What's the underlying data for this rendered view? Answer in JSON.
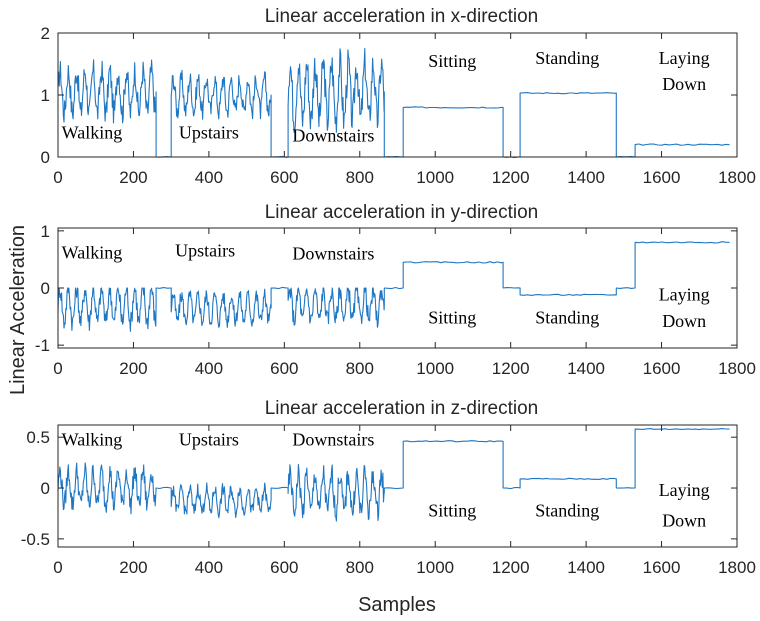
{
  "figure": {
    "ylabel": "Linear Acceleration",
    "xlabel": "Samples"
  },
  "colors": {
    "signal": "#1f77c4",
    "axis": "#262626"
  },
  "chart_data": [
    {
      "type": "line",
      "title": "Linear acceleration in x-direction",
      "xlim": [
        0,
        1800
      ],
      "ylim": [
        0,
        2
      ],
      "xticks": [
        0,
        200,
        400,
        600,
        800,
        1000,
        1200,
        1400,
        1600,
        1800
      ],
      "yticks": [
        0,
        1,
        2
      ],
      "segments": [
        {
          "label": "Walking",
          "x": [
            0,
            260
          ],
          "kind": "oscillating",
          "mean": 1.05,
          "amp": 0.45,
          "max": 1.65,
          "min": 0.55
        },
        {
          "label": "",
          "x": [
            260,
            300
          ],
          "kind": "flat",
          "value": 0.0
        },
        {
          "label": "Upstairs",
          "x": [
            300,
            565
          ],
          "kind": "oscillating",
          "mean": 1.0,
          "amp": 0.35,
          "max": 1.5,
          "min": 0.6
        },
        {
          "label": "",
          "x": [
            565,
            610
          ],
          "kind": "flat",
          "value": 0.0
        },
        {
          "label": "Downstairs",
          "x": [
            610,
            865
          ],
          "kind": "oscillating",
          "mean": 1.05,
          "amp": 0.6,
          "max": 1.9,
          "min": 0.4
        },
        {
          "label": "",
          "x": [
            865,
            915
          ],
          "kind": "flat",
          "value": 0.0
        },
        {
          "label": "Sitting",
          "x": [
            915,
            1180
          ],
          "kind": "flat",
          "value": 0.8
        },
        {
          "label": "",
          "x": [
            1180,
            1225
          ],
          "kind": "flat",
          "value": 0.0
        },
        {
          "label": "Standing",
          "x": [
            1225,
            1480
          ],
          "kind": "flat",
          "value": 1.03
        },
        {
          "label": "",
          "x": [
            1480,
            1530
          ],
          "kind": "flat",
          "value": 0.0
        },
        {
          "label": "Laying Down",
          "x": [
            1530,
            1780
          ],
          "kind": "flat",
          "value": 0.2
        }
      ],
      "annotations": [
        {
          "text": "Walking",
          "x": 90,
          "y": 0.3
        },
        {
          "text": "Upstairs",
          "x": 400,
          "y": 0.3
        },
        {
          "text": "Downstairs",
          "x": 730,
          "y": 0.25
        },
        {
          "text": "Sitting",
          "x": 1045,
          "y": 1.45
        },
        {
          "text": "Standing",
          "x": 1350,
          "y": 1.5
        },
        {
          "text": "Laying",
          "x": 1660,
          "y": 1.5
        },
        {
          "text": "Down",
          "x": 1660,
          "y": 1.08
        }
      ]
    },
    {
      "type": "line",
      "title": "Linear acceleration in y-direction",
      "xlim": [
        0,
        1800
      ],
      "ylim": [
        -1.05,
        1.05
      ],
      "xticks": [
        0,
        200,
        400,
        600,
        800,
        1000,
        1200,
        1400,
        1600,
        1800
      ],
      "yticks": [
        -1,
        0,
        1
      ],
      "ytick_labels": [
        "-1",
        "0",
        "1"
      ],
      "segments": [
        {
          "label": "Walking",
          "x": [
            0,
            260
          ],
          "kind": "oscillating",
          "mean": -0.3,
          "amp": 0.4,
          "max": 0.0,
          "min": -1.0
        },
        {
          "label": "",
          "x": [
            260,
            300
          ],
          "kind": "flat",
          "value": 0.0
        },
        {
          "label": "Upstairs",
          "x": [
            300,
            565
          ],
          "kind": "oscillating",
          "mean": -0.35,
          "amp": 0.3,
          "max": 0.0,
          "min": -0.8
        },
        {
          "label": "",
          "x": [
            565,
            610
          ],
          "kind": "flat",
          "value": 0.0
        },
        {
          "label": "Downstairs",
          "x": [
            610,
            865
          ],
          "kind": "oscillating",
          "mean": -0.3,
          "amp": 0.35,
          "max": 0.0,
          "min": -0.85
        },
        {
          "label": "",
          "x": [
            865,
            915
          ],
          "kind": "flat",
          "value": 0.0
        },
        {
          "label": "Sitting",
          "x": [
            915,
            1180
          ],
          "kind": "flat",
          "value": 0.45
        },
        {
          "label": "",
          "x": [
            1180,
            1225
          ],
          "kind": "flat",
          "value": 0.0
        },
        {
          "label": "Standing",
          "x": [
            1225,
            1480
          ],
          "kind": "flat",
          "value": -0.12
        },
        {
          "label": "",
          "x": [
            1480,
            1530
          ],
          "kind": "flat",
          "value": 0.0
        },
        {
          "label": "Laying Down",
          "x": [
            1530,
            1780
          ],
          "kind": "flat",
          "value": 0.8
        }
      ],
      "annotations": [
        {
          "text": "Walking",
          "x": 90,
          "y": 0.52
        },
        {
          "text": "Upstairs",
          "x": 390,
          "y": 0.55
        },
        {
          "text": "Downstairs",
          "x": 730,
          "y": 0.5
        },
        {
          "text": "Sitting",
          "x": 1045,
          "y": -0.62
        },
        {
          "text": "Standing",
          "x": 1350,
          "y": -0.62
        },
        {
          "text": "Laying",
          "x": 1660,
          "y": -0.22
        },
        {
          "text": "Down",
          "x": 1660,
          "y": -0.68
        }
      ]
    },
    {
      "type": "line",
      "title": "Linear acceleration in z-direction",
      "xlim": [
        0,
        1800
      ],
      "ylim": [
        -0.58,
        0.62
      ],
      "xticks": [
        0,
        200,
        400,
        600,
        800,
        1000,
        1200,
        1400,
        1600,
        1800
      ],
      "yticks": [
        -0.5,
        0,
        0.5
      ],
      "ytick_labels": [
        "-0.5",
        "0",
        "0.5"
      ],
      "segments": [
        {
          "label": "Walking",
          "x": [
            0,
            260
          ],
          "kind": "oscillating",
          "mean": 0.0,
          "amp": 0.22,
          "max": 0.35,
          "min": -0.38
        },
        {
          "label": "",
          "x": [
            260,
            300
          ],
          "kind": "flat",
          "value": 0.0
        },
        {
          "label": "Upstairs",
          "x": [
            300,
            565
          ],
          "kind": "oscillating",
          "mean": -0.12,
          "amp": 0.15,
          "max": 0.1,
          "min": -0.35
        },
        {
          "label": "",
          "x": [
            565,
            610
          ],
          "kind": "flat",
          "value": 0.0
        },
        {
          "label": "Downstairs",
          "x": [
            610,
            865
          ],
          "kind": "oscillating",
          "mean": -0.05,
          "amp": 0.25,
          "max": 0.3,
          "min": -0.55
        },
        {
          "label": "",
          "x": [
            865,
            915
          ],
          "kind": "flat",
          "value": 0.0
        },
        {
          "label": "Sitting",
          "x": [
            915,
            1180
          ],
          "kind": "flat",
          "value": 0.46
        },
        {
          "label": "",
          "x": [
            1180,
            1225
          ],
          "kind": "flat",
          "value": 0.0
        },
        {
          "label": "Standing",
          "x": [
            1225,
            1480
          ],
          "kind": "flat",
          "value": 0.09
        },
        {
          "label": "",
          "x": [
            1480,
            1530
          ],
          "kind": "flat",
          "value": 0.0
        },
        {
          "label": "Laying Down",
          "x": [
            1530,
            1780
          ],
          "kind": "flat",
          "value": 0.58
        }
      ],
      "annotations": [
        {
          "text": "Walking",
          "x": 90,
          "y": 0.42
        },
        {
          "text": "Upstairs",
          "x": 400,
          "y": 0.42
        },
        {
          "text": "Downstairs",
          "x": 730,
          "y": 0.42
        },
        {
          "text": "Sitting",
          "x": 1045,
          "y": -0.28
        },
        {
          "text": "Standing",
          "x": 1350,
          "y": -0.28
        },
        {
          "text": "Laying",
          "x": 1660,
          "y": -0.08
        },
        {
          "text": "Down",
          "x": 1660,
          "y": -0.38
        }
      ]
    }
  ]
}
